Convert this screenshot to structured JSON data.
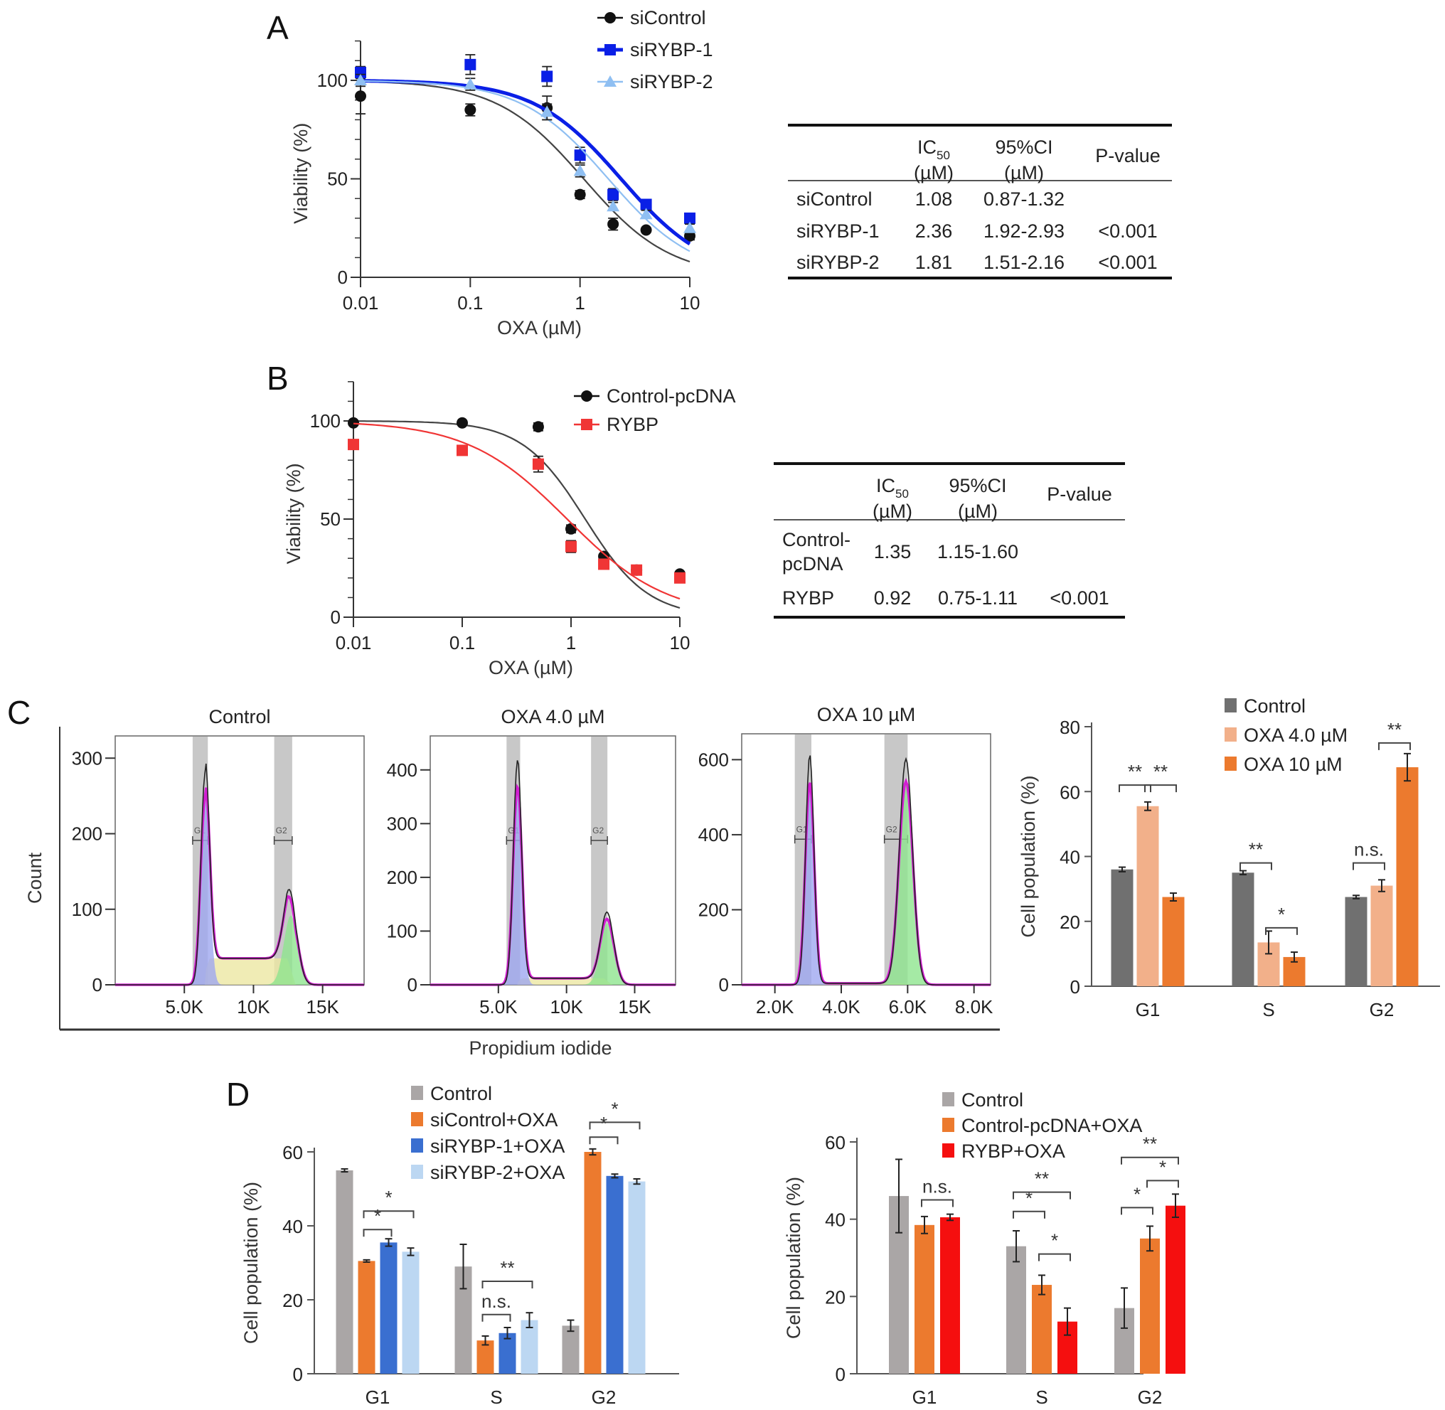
{
  "figure": {
    "panels": [
      "A",
      "B",
      "C",
      "D"
    ],
    "colors": {
      "black": "#111111",
      "blue": "#0a1fe6",
      "light_blue": "#8fbff2",
      "red": "#f03535",
      "dark_gray": "#707070",
      "light_orange": "#f2b08a",
      "orange": "#ec7a2e",
      "gray": "#aaa6a6",
      "mid_blue": "#3a6fd0",
      "pale_blue": "#bcd7f2",
      "pure_red": "#f50f0f",
      "g1_fill": "#9fa7f0",
      "g2_fill": "#8fe58f",
      "s_fill": "#ece7a2",
      "gate_band": "#c8c8c8",
      "fit_magenta": "#d21ed2"
    }
  },
  "chart_data": [
    {
      "id": "A",
      "type": "scatter",
      "panel_label": "A",
      "title": "",
      "xlabel": "OXA (µM)",
      "ylabel": "Viability (%)",
      "xscale": "log",
      "xlim": [
        0.01,
        10
      ],
      "ylim": [
        0,
        120
      ],
      "xticks": [
        "0.01",
        "0.1",
        "1",
        "10"
      ],
      "yticks": [
        "0",
        "50",
        "100"
      ],
      "x": [
        0.01,
        0.1,
        0.5,
        1,
        2,
        4,
        10
      ],
      "legend_position": "top-right",
      "series": [
        {
          "name": "siControl",
          "marker": "circle",
          "color": "#111111",
          "values": [
            92,
            85,
            86,
            42,
            27,
            24,
            21
          ],
          "errors": [
            9,
            3,
            6,
            2,
            3,
            1,
            2
          ],
          "ic50": 1.08,
          "fit_width": "thin"
        },
        {
          "name": "siRYBP-1",
          "marker": "square",
          "color": "#0a1fe6",
          "values": [
            104,
            108,
            102,
            62,
            42,
            37,
            30
          ],
          "errors": [
            3,
            5,
            5,
            4,
            3,
            2,
            2
          ],
          "ic50": 2.36,
          "fit_width": "thick"
        },
        {
          "name": "siRYBP-2",
          "marker": "triangle",
          "color": "#8fbff2",
          "values": [
            100,
            98,
            84,
            54,
            36,
            32,
            25
          ],
          "errors": [
            3,
            3,
            4,
            3,
            2,
            2,
            2
          ],
          "ic50": 1.81,
          "fit_width": "thin"
        }
      ]
    },
    {
      "id": "A-table",
      "type": "table",
      "headers": [
        {
          "main": "",
          "sub": ""
        },
        {
          "main": "IC",
          "subscript": "50",
          "sub": "(µM)"
        },
        {
          "main": "95%CI",
          "sub": "(µM)"
        },
        {
          "main": "P-value",
          "sub": ""
        }
      ],
      "rows": [
        [
          "siControl",
          "1.08",
          "0.87-1.32",
          ""
        ],
        [
          "siRYBP-1",
          "2.36",
          "1.92-2.93",
          "<0.001"
        ],
        [
          "siRYBP-2",
          "1.81",
          "1.51-2.16",
          "<0.001"
        ]
      ]
    },
    {
      "id": "B",
      "type": "scatter",
      "panel_label": "B",
      "title": "",
      "xlabel": "OXA (µM)",
      "ylabel": "Viability (%)",
      "xscale": "log",
      "xlim": [
        0.01,
        10
      ],
      "ylim": [
        0,
        120
      ],
      "xticks": [
        "0.01",
        "0.1",
        "1",
        "10"
      ],
      "yticks": [
        "0",
        "50",
        "100"
      ],
      "x": [
        0.01,
        0.1,
        0.5,
        1,
        2,
        4,
        10
      ],
      "legend_position": "top-right",
      "series": [
        {
          "name": "Control-pcDNA",
          "marker": "circle",
          "color": "#111111",
          "values": [
            99,
            99,
            97,
            45,
            31,
            24,
            22
          ],
          "errors": [
            1,
            1,
            2,
            2,
            1,
            1,
            1
          ],
          "ic50": 1.35,
          "hill": 1.5
        },
        {
          "name": "RYBP",
          "marker": "square",
          "color": "#f03535",
          "values": [
            88,
            85,
            78,
            36,
            27,
            24,
            20
          ],
          "errors": [
            2,
            1,
            4,
            3,
            1,
            1,
            1
          ],
          "ic50": 0.92,
          "hill": 0.95
        }
      ]
    },
    {
      "id": "B-table",
      "type": "table",
      "headers": [
        {
          "main": "",
          "sub": ""
        },
        {
          "main": "IC",
          "subscript": "50",
          "sub": "(µM)"
        },
        {
          "main": "95%CI",
          "sub": "(µM)"
        },
        {
          "main": "P-value",
          "sub": ""
        }
      ],
      "rows": [
        [
          "Control-\npcDNA",
          "1.35",
          "1.15-1.60",
          ""
        ],
        [
          "RYBP",
          "0.92",
          "0.75-1.11",
          "<0.001"
        ]
      ]
    },
    {
      "id": "C-hist",
      "type": "area",
      "panel_label": "C",
      "ylabel": "Count",
      "xlabel": "Propidium iodide",
      "histograms": [
        {
          "title": "Control",
          "yticks": [
            0,
            100,
            200,
            300
          ],
          "ymax": 320,
          "xticks": [
            "5.0K",
            "10K",
            "15K"
          ],
          "xtick_values": [
            5000,
            10000,
            15000
          ],
          "xlim": [
            0,
            18000
          ],
          "g1_peak": {
            "x": 6500,
            "count": 280
          },
          "g2_peak": {
            "x": 12700,
            "count": 102
          },
          "s_level": 35,
          "g1_gate": [
            5600,
            6700
          ],
          "g2_gate": [
            11500,
            12800
          ]
        },
        {
          "title": "OXA 4.0 µM",
          "yticks": [
            0,
            100,
            200,
            300,
            400
          ],
          "ymax": 450,
          "xticks": [
            "5.0K",
            "10K",
            "15K"
          ],
          "xtick_values": [
            5000,
            10000,
            15000
          ],
          "xlim": [
            0,
            18000
          ],
          "g1_peak": {
            "x": 6400,
            "count": 418
          },
          "g2_peak": {
            "x": 13000,
            "count": 128
          },
          "s_level": 12,
          "g1_gate": [
            5600,
            6600
          ],
          "g2_gate": [
            11800,
            13000
          ]
        },
        {
          "title": "OXA 10 µM",
          "yticks": [
            0,
            200,
            400,
            600
          ],
          "ymax": 650,
          "xticks": [
            "2.0K",
            "4.0K",
            "6.0K",
            "8.0K"
          ],
          "xtick_values": [
            2000,
            4000,
            6000,
            8000
          ],
          "xlim": [
            1000,
            8500
          ],
          "g1_peak": {
            "x": 3050,
            "count": 612
          },
          "g2_peak": {
            "x": 5950,
            "count": 600
          },
          "s_level": 4,
          "g1_gate": [
            2600,
            3100
          ],
          "g2_gate": [
            5300,
            6000
          ]
        }
      ]
    },
    {
      "id": "C-bar",
      "type": "bar",
      "title": "",
      "xlabel": "",
      "ylabel": "Cell population (%)",
      "ylim": [
        0,
        80
      ],
      "yticks": [
        "0",
        "20",
        "40",
        "60",
        "80"
      ],
      "categories": [
        "G1",
        "S",
        "G2"
      ],
      "legend_position": "top-right",
      "series": [
        {
          "name": "Control",
          "color": "#707070",
          "values": [
            36,
            35,
            27.5
          ],
          "errors": [
            0.7,
            0.6,
            0.5
          ]
        },
        {
          "name": "OXA 4.0 µM",
          "color": "#f2b08a",
          "values": [
            55.5,
            13.5,
            31
          ],
          "errors": [
            1.3,
            3.5,
            1.8
          ]
        },
        {
          "name": "OXA 10 µM",
          "color": "#ec7a2e",
          "values": [
            27.5,
            9,
            67.5
          ],
          "errors": [
            1.2,
            1.5,
            4.2
          ]
        }
      ],
      "annotations": [
        {
          "category": 0,
          "from": 0,
          "to": 1,
          "level": 62,
          "label": "**"
        },
        {
          "category": 0,
          "from": 1,
          "to": 2,
          "level": 62,
          "label": "**"
        },
        {
          "category": 1,
          "from": 0,
          "to": 1,
          "level": 38,
          "label": "**"
        },
        {
          "category": 1,
          "from": 1,
          "to": 2,
          "level": 18,
          "label": "*"
        },
        {
          "category": 2,
          "from": 0,
          "to": 1,
          "level": 38,
          "label": "n.s."
        },
        {
          "category": 2,
          "from": 1,
          "to": 2,
          "level": 75,
          "label": "**"
        }
      ]
    },
    {
      "id": "D-left",
      "type": "bar",
      "panel_label": "D",
      "title": "",
      "xlabel": "",
      "ylabel": "Cell population (%)",
      "ylim": [
        0,
        60
      ],
      "yticks": [
        "0",
        "20",
        "40",
        "60"
      ],
      "categories": [
        "G1",
        "S",
        "G2"
      ],
      "legend_position": "top",
      "series": [
        {
          "name": "Control",
          "color": "#aaa6a6",
          "values": [
            55,
            29,
            13
          ],
          "errors": [
            0.4,
            6,
            1.5
          ]
        },
        {
          "name": "siControl+OXA",
          "color": "#ec7a2e",
          "values": [
            30.5,
            9,
            60
          ],
          "errors": [
            0.3,
            1.2,
            0.8
          ]
        },
        {
          "name": "siRYBP-1+OXA",
          "color": "#3a6fd0",
          "values": [
            35.5,
            11,
            53.5
          ],
          "errors": [
            1,
            1.5,
            0.5
          ]
        },
        {
          "name": "siRYBP-2+OXA",
          "color": "#bcd7f2",
          "values": [
            33,
            14.5,
            52
          ],
          "errors": [
            1,
            2,
            0.7
          ]
        }
      ],
      "annotations": [
        {
          "category": 0,
          "from": 1,
          "to": 2,
          "level": 39,
          "label": "*"
        },
        {
          "category": 0,
          "from": 1,
          "to": 3,
          "level": 44,
          "label": "*"
        },
        {
          "category": 1,
          "from": 1,
          "to": 2,
          "level": 16,
          "label": "n.s."
        },
        {
          "category": 1,
          "from": 1,
          "to": 3,
          "level": 25,
          "label": "**"
        },
        {
          "category": 2,
          "from": 1,
          "to": 2,
          "level": 64,
          "label": "*"
        },
        {
          "category": 2,
          "from": 1,
          "to": 3,
          "level": 68,
          "label": "*"
        }
      ]
    },
    {
      "id": "D-right",
      "type": "bar",
      "title": "",
      "xlabel": "",
      "ylabel": "Cell population (%)",
      "ylim": [
        0,
        60
      ],
      "yticks": [
        "0",
        "20",
        "40",
        "60"
      ],
      "categories": [
        "G1",
        "S",
        "G2"
      ],
      "legend_position": "top",
      "series": [
        {
          "name": "Control",
          "color": "#aaa6a6",
          "values": [
            46,
            33,
            17
          ],
          "errors": [
            9.5,
            4,
            5.2
          ]
        },
        {
          "name": "Control-pcDNA+OXA",
          "color": "#ec7a2e",
          "values": [
            38.5,
            23,
            35
          ],
          "errors": [
            2.2,
            2.5,
            3.2
          ]
        },
        {
          "name": "RYBP+OXA",
          "color": "#f50f0f",
          "values": [
            40.5,
            13.5,
            43.5
          ],
          "errors": [
            0.8,
            3.5,
            3
          ]
        }
      ],
      "annotations": [
        {
          "category": 0,
          "from": 1,
          "to": 2,
          "level": 45,
          "label": "n.s."
        },
        {
          "category": 1,
          "from": 0,
          "to": 1,
          "level": 42,
          "label": "*"
        },
        {
          "category": 1,
          "from": 0,
          "to": 2,
          "level": 47,
          "label": "**"
        },
        {
          "category": 1,
          "from": 1,
          "to": 2,
          "level": 31,
          "label": "*"
        },
        {
          "category": 2,
          "from": 0,
          "to": 1,
          "level": 43,
          "label": "*"
        },
        {
          "category": 2,
          "from": 1,
          "to": 2,
          "level": 50,
          "label": "*"
        },
        {
          "category": 2,
          "from": 0,
          "to": 2,
          "level": 56,
          "label": "**"
        }
      ]
    }
  ]
}
